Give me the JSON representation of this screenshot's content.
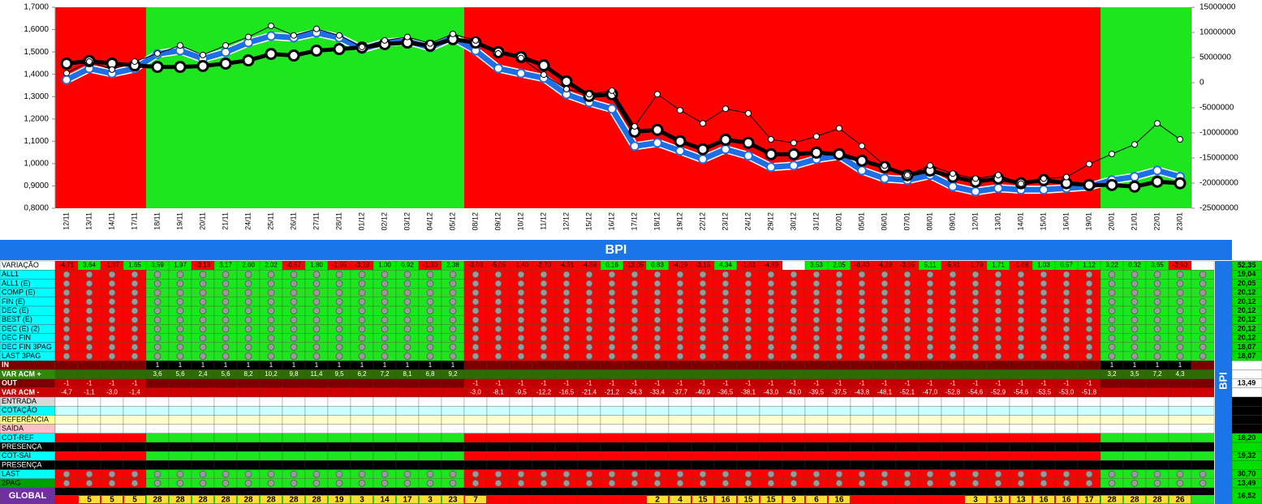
{
  "chart_data": {
    "type": "line",
    "categories": [
      "12/11",
      "13/11",
      "14/11",
      "17/11",
      "18/11",
      "19/11",
      "20/11",
      "21/11",
      "24/11",
      "25/11",
      "26/11",
      "27/11",
      "28/11",
      "01/12",
      "02/12",
      "03/12",
      "04/12",
      "05/12",
      "08/12",
      "09/12",
      "10/12",
      "11/12",
      "12/12",
      "15/12",
      "16/12",
      "17/12",
      "18/12",
      "19/12",
      "22/12",
      "23/12",
      "24/12",
      "29/12",
      "30/12",
      "31/12",
      "02/01",
      "05/01",
      "06/01",
      "07/01",
      "08/01",
      "09/01",
      "12/01",
      "13/01",
      "14/01",
      "15/01",
      "16/01",
      "19/01",
      "20/01",
      "21/01",
      "22/01",
      "23/01"
    ],
    "band_colors": [
      "#ff0000",
      "#ff0000",
      "#ff0000",
      "#ff0000",
      "#1ee61e",
      "#1ee61e",
      "#1ee61e",
      "#1ee61e",
      "#1ee61e",
      "#1ee61e",
      "#1ee61e",
      "#1ee61e",
      "#1ee61e",
      "#1ee61e",
      "#1ee61e",
      "#1ee61e",
      "#1ee61e",
      "#1ee61e",
      "#ff0000",
      "#ff0000",
      "#ff0000",
      "#ff0000",
      "#ff0000",
      "#ff0000",
      "#ff0000",
      "#ff0000",
      "#ff0000",
      "#ff0000",
      "#ff0000",
      "#ff0000",
      "#ff0000",
      "#ff0000",
      "#ff0000",
      "#ff0000",
      "#ff0000",
      "#ff0000",
      "#ff0000",
      "#ff0000",
      "#ff0000",
      "#ff0000",
      "#ff0000",
      "#ff0000",
      "#ff0000",
      "#ff0000",
      "#ff0000",
      "#ff0000",
      "#1ee61e",
      "#1ee61e",
      "#1ee61e",
      "#1ee61e"
    ],
    "ylim": [
      0.8,
      1.7
    ],
    "yticks": [
      {
        "value": 0.8,
        "label": "0,8000"
      },
      {
        "value": 0.9,
        "label": "0,9000"
      },
      {
        "value": 1.0,
        "label": "1,0000"
      },
      {
        "value": 1.1,
        "label": "1,1000"
      },
      {
        "value": 1.2,
        "label": "1,2000"
      },
      {
        "value": 1.3,
        "label": "1,3000"
      },
      {
        "value": 1.4,
        "label": "1,4000"
      },
      {
        "value": 1.5,
        "label": "1,5000"
      },
      {
        "value": 1.6,
        "label": "1,6000"
      },
      {
        "value": 1.7,
        "label": "1,7000"
      }
    ],
    "y2lim": [
      -25000000,
      15000000
    ],
    "y2ticks": [
      15000000,
      10000000,
      5000000,
      0,
      -5000000,
      -10000000,
      -15000000,
      -20000000,
      -25000000
    ],
    "series": [
      {
        "color": "#1e6ee6",
        "values": [
          1.375,
          1.426,
          1.404,
          1.426,
          1.491,
          1.506,
          1.47,
          1.499,
          1.542,
          1.571,
          1.564,
          1.586,
          1.564,
          1.513,
          1.542,
          1.549,
          1.52,
          1.564,
          1.506,
          1.426,
          1.404,
          1.383,
          1.31,
          1.274,
          1.245,
          1.078,
          1.093,
          1.057,
          1.02,
          1.064,
          1.035,
          0.984,
          0.991,
          1.02,
          1.035,
          0.969,
          0.933,
          0.926,
          0.948,
          0.897,
          0.875,
          0.89,
          0.883,
          0.883,
          0.89,
          0.897,
          0.926,
          0.941,
          0.969,
          0.941
        ]
      },
      {
        "color": "#000000",
        "values": [
          1.448,
          1.459,
          1.448,
          1.44,
          1.433,
          1.433,
          1.437,
          1.448,
          1.462,
          1.491,
          1.484,
          1.506,
          1.513,
          1.52,
          1.535,
          1.542,
          1.528,
          1.557,
          1.542,
          1.499,
          1.477,
          1.44,
          1.368,
          1.303,
          1.31,
          1.143,
          1.151,
          1.1,
          1.064,
          1.107,
          1.093,
          1.042,
          1.042,
          1.049,
          1.042,
          1.013,
          0.984,
          0.948,
          0.969,
          0.941,
          0.919,
          0.933,
          0.912,
          0.926,
          0.912,
          0.904,
          0.904,
          0.897,
          0.919,
          0.912
        ]
      },
      {
        "color": "#000000",
        "axis": "y2",
        "values": [
          1900000,
          4200000,
          2600000,
          4200000,
          5800000,
          7400000,
          5500000,
          7400000,
          9100000,
          11300000,
          9400000,
          10700000,
          9400000,
          7100000,
          8400000,
          9100000,
          7800000,
          9700000,
          8400000,
          5800000,
          4900000,
          1600000,
          -1300000,
          -2300000,
          -1600000,
          -8700000,
          -2300000,
          -5500000,
          -8100000,
          -5200000,
          -6100000,
          -11300000,
          -12000000,
          -10700000,
          -9100000,
          -12600000,
          -16500000,
          -18400000,
          -16500000,
          -18100000,
          -19100000,
          -18400000,
          -20100000,
          -19100000,
          -18800000,
          -16200000,
          -14200000,
          -12300000,
          -8100000,
          -11300000
        ]
      }
    ]
  },
  "table": {
    "title": "BPI",
    "side_title": "BPI",
    "rows": [
      {
        "label": "VARIAÇÃO",
        "total": "52,35",
        "cells": [
          "-4,71",
          "3,64",
          "-1,97",
          "1,65",
          "3,59",
          "1,97",
          "-3,13",
          "3,17",
          "2,60",
          "2,02",
          "-0,57",
          "1,80",
          "-1,95",
          "-3,28",
          "1,00",
          "0,92",
          "-1,30",
          "2,38",
          "-3,03",
          "-5,05",
          "-1,40",
          "-2,70",
          "-4,31",
          "-4,88",
          "0,16",
          "-13,05",
          "0,83",
          "-4,29",
          "-3,15",
          "4,34",
          "-1,61",
          "-4,89",
          null,
          "3,53",
          "2,05",
          "-6,40",
          "-4,29",
          "-3,95",
          "5,11",
          "-5,81",
          "-1,79",
          "1,71",
          "-1,68",
          "1,03",
          "0,57",
          "1,12",
          "3,22",
          "0,32",
          "3,65",
          "-2,90"
        ]
      },
      {
        "label": "ALL1",
        "total": "19,04"
      },
      {
        "label": "ALL1 (E)",
        "total": "20,05"
      },
      {
        "label": "COMP (E)",
        "total": "20,12"
      },
      {
        "label": "FIN (E)",
        "total": "20,12"
      },
      {
        "label": "DEC (E)",
        "total": "20,12"
      },
      {
        "label": "BEST (E)",
        "total": "20,12"
      },
      {
        "label": "DEC (E) (2)",
        "total": "20,12"
      },
      {
        "label": "DEC FIN",
        "total": "20,12"
      },
      {
        "label": "DEC FIN 3PAG",
        "total": "18,07"
      },
      {
        "label": "LAST 3PAG",
        "total": "18,07"
      },
      {
        "label": "IN",
        "cells": [
          null,
          null,
          null,
          null,
          "1",
          "1",
          "1",
          "1",
          "1",
          "1",
          "1",
          "1",
          "1",
          "1",
          "1",
          "1",
          "1",
          "1",
          null,
          null,
          null,
          null,
          null,
          null,
          null,
          null,
          null,
          null,
          null,
          null,
          null,
          null,
          null,
          null,
          null,
          null,
          null,
          null,
          null,
          null,
          null,
          null,
          null,
          null,
          null,
          null,
          "1",
          "1",
          "1",
          "1"
        ]
      },
      {
        "label": "VAR ACM +",
        "cells": [
          null,
          null,
          null,
          null,
          "3,6",
          "5,6",
          "2,4",
          "5,6",
          "8,2",
          "10,2",
          "9,8",
          "11,4",
          "9,5",
          "6,2",
          "7,2",
          "8,1",
          "6,8",
          "9,2",
          null,
          null,
          null,
          null,
          null,
          null,
          null,
          null,
          null,
          null,
          null,
          null,
          null,
          null,
          null,
          null,
          null,
          null,
          null,
          null,
          null,
          null,
          null,
          null,
          null,
          null,
          null,
          null,
          "3,2",
          "3,5",
          "7,2",
          "4,3"
        ]
      },
      {
        "label": "OUT",
        "total": "13,49",
        "cells": [
          "-1",
          "-1",
          "-1",
          "-1",
          null,
          null,
          null,
          null,
          null,
          null,
          null,
          null,
          null,
          null,
          null,
          null,
          null,
          null,
          "-1",
          "-1",
          "-1",
          "-1",
          "-1",
          "-1",
          "-1",
          "-1",
          "-1",
          "-1",
          "-1",
          "-1",
          "-1",
          "-1",
          "-1",
          "-1",
          "-1",
          "-1",
          "-1",
          "-1",
          "-1",
          "-1",
          "-1",
          "-1",
          "-1",
          "-1",
          "-1",
          "-1",
          null,
          null,
          null,
          null
        ]
      },
      {
        "label": "VAR ACM -",
        "cells": [
          "-4,7",
          "-1,1",
          "-3,0",
          "-1,4",
          null,
          null,
          null,
          null,
          null,
          null,
          null,
          null,
          null,
          null,
          null,
          null,
          null,
          null,
          "-3,0",
          "-8,1",
          "-9,5",
          "-12,2",
          "-16,5",
          "-21,4",
          "-21,2",
          "-34,3",
          "-33,4",
          "-37,7",
          "-40,9",
          "-36,5",
          "-38,1",
          "-43,0",
          "-43,0",
          "-39,5",
          "-37,5",
          "-43,8",
          "-48,1",
          "-52,1",
          "-47,0",
          "-52,8",
          "-54,6",
          "-52,9",
          "-54,6",
          "-53,5",
          "-53,0",
          "-51,8",
          null,
          null,
          null,
          null
        ]
      },
      {
        "label": "ENTRADA"
      },
      {
        "label": "COTAÇÃO"
      },
      {
        "label": "REFERÊNCIA"
      },
      {
        "label": "SAÍDA"
      },
      {
        "label": "COT-REF",
        "total": "18,20"
      },
      {
        "label": "PRESENÇA"
      },
      {
        "label": "COT-SAI",
        "total": "19,32"
      },
      {
        "label": "PRESENÇA"
      },
      {
        "label": "LAST",
        "total": "30,70"
      },
      {
        "label": "2PAG",
        "total": "13,49"
      },
      {
        "label": "GLOBAL",
        "total": "16,52",
        "cells": [
          null,
          "5",
          "5",
          "5",
          "28",
          "28",
          "28",
          "28",
          "28",
          "28",
          "28",
          "28",
          "19",
          "3",
          "14",
          "17",
          "3",
          "23",
          "7",
          null,
          null,
          null,
          null,
          null,
          null,
          null,
          "2",
          "4",
          "15",
          "16",
          "15",
          "15",
          "9",
          "6",
          "16",
          null,
          null,
          null,
          null,
          null,
          "3",
          "13",
          "13",
          "16",
          "16",
          "17",
          "28",
          "28",
          "28",
          "26"
        ]
      }
    ]
  }
}
